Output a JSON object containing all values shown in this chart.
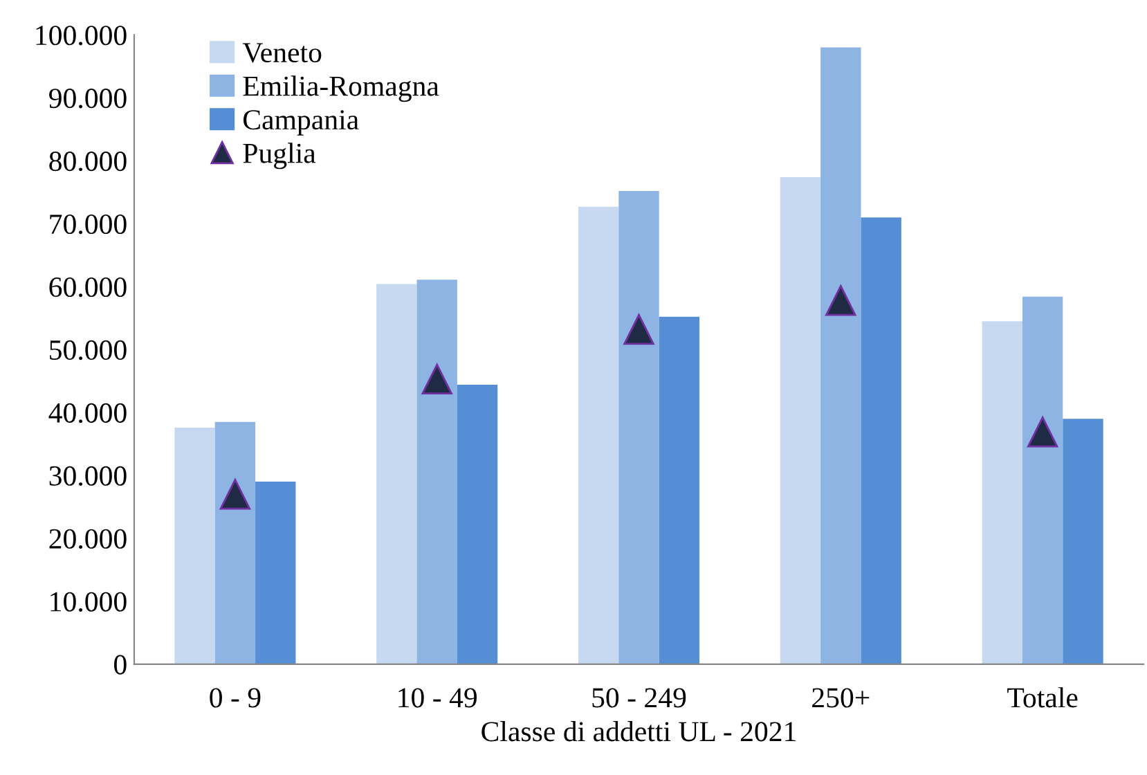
{
  "chart_data": {
    "type": "bar",
    "xlabel": "Classe di addetti UL - 2021",
    "categories": [
      "0 - 9",
      "10 - 49",
      "50 - 249",
      "250+",
      "Totale"
    ],
    "series": [
      {
        "name": "Veneto",
        "color": "#c6d9f1",
        "values": [
          37600,
          60400,
          72700,
          77400,
          54500
        ]
      },
      {
        "name": "Emilia-Romagna",
        "color": "#8eb4e3",
        "values": [
          38500,
          61100,
          75200,
          98000,
          58400
        ]
      },
      {
        "name": "Campania",
        "color": "#558ed5",
        "values": [
          29000,
          44400,
          55200,
          71000,
          39000
        ]
      },
      {
        "name": "Puglia",
        "color": "#1f2a44",
        "type": "scatter",
        "marker": "triangle",
        "x": [
          "0 - 9",
          "10 - 49",
          "50 - 249",
          "250+",
          "Totale"
        ],
        "values": [
          27000,
          45300,
          53200,
          57800,
          36900
        ]
      }
    ],
    "ylim": [
      0,
      100000
    ],
    "yticks": [
      0,
      {
        "value": 10000,
        "label": "10.000"
      },
      {
        "value": 20000,
        "label": "20.000"
      },
      {
        "value": 30000,
        "label": "30.000"
      },
      {
        "value": 40000,
        "label": "40.000"
      },
      {
        "value": 50000,
        "label": "50.000"
      },
      {
        "value": 60000,
        "label": "60.000"
      },
      {
        "value": 70000,
        "label": "70.000"
      },
      {
        "value": 80000,
        "label": "80.000"
      },
      {
        "value": 90000,
        "label": "90.000"
      },
      {
        "value": 100000,
        "label": "100.000"
      }
    ],
    "grid": false,
    "legend": "top left"
  }
}
